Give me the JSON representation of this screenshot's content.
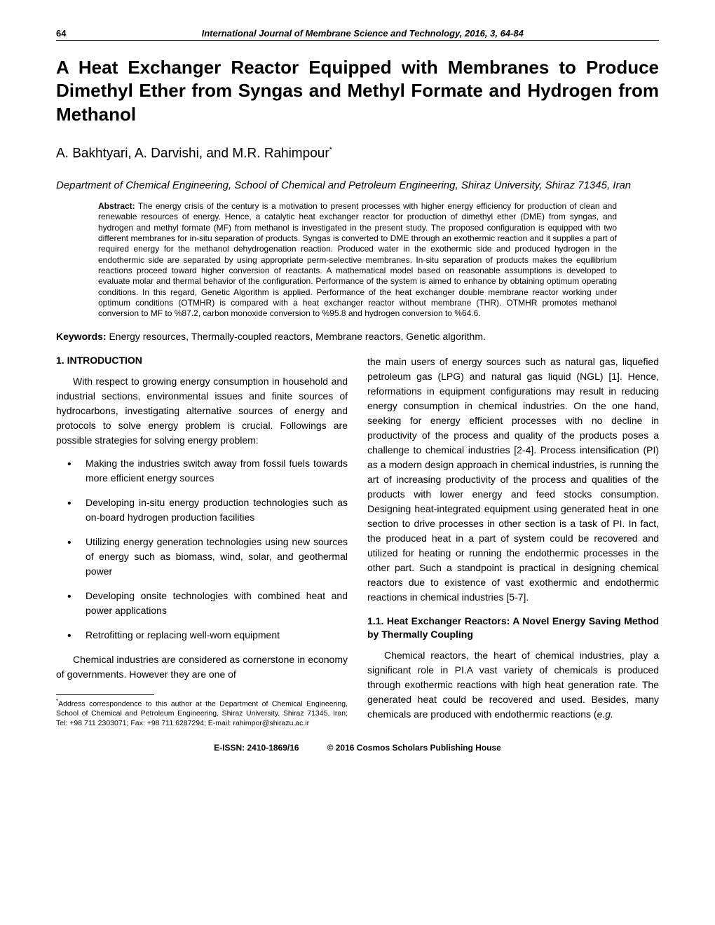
{
  "page": {
    "number": "64",
    "journal_header": "International Journal of Membrane Science and Technology, 2016, 3, 64-84",
    "background_color": "#ffffff",
    "text_color": "#000000"
  },
  "title": "A Heat Exchanger Reactor Equipped with Membranes to Produce Dimethyl Ether from Syngas and Methyl Formate and Hydrogen from Methanol",
  "authors": "A. Bakhtyari, A. Darvishi, and M.R. Rahimpour",
  "authors_sup": "*",
  "affiliation": "Department of Chemical Engineering, School of Chemical and Petroleum Engineering, Shiraz University, Shiraz 71345, Iran",
  "abstract": {
    "label": "Abstract:",
    "text": " The energy crisis of the century is a motivation to present processes with higher energy efficiency for production of clean and renewable resources of energy. Hence, a catalytic heat exchanger reactor for production of dimethyl ether (DME) from syngas, and hydrogen and methyl formate (MF) from methanol is investigated in the present study. The proposed configuration is equipped with two different membranes for in-situ separation of products. Syngas is converted to DME through an exothermic reaction and it supplies a part of required energy for the methanol dehydrogenation reaction. Produced water in the exothermic side and produced hydrogen in the endothermic side are separated by using appropriate perm-selective membranes. In-situ separation of products makes the equilibrium reactions proceed toward higher conversion of reactants. A mathematical model based on reasonable assumptions is developed to evaluate molar and thermal behavior of the configuration. Performance of the system is aimed to enhance by obtaining optimum operating conditions. In this regard, Genetic Algorithm is applied. Performance of the heat exchanger double membrane reactor working under optimum conditions (OTMHR) is compared with a heat exchanger reactor without membrane (THR). OTMHR promotes methanol conversion to MF to %87.2, carbon monoxide conversion to %95.8 and hydrogen conversion to %64.6."
  },
  "keywords": {
    "label": "Keywords:",
    "text": " Energy resources, Thermally-coupled reactors, Membrane reactors, Genetic algorithm."
  },
  "left_column": {
    "section_head": "1. INTRODUCTION",
    "para1": "With respect to growing energy consumption in household and industrial sections, environmental issues and finite sources of hydrocarbons, investigating alternative sources of energy and protocols to solve energy problem is crucial. Followings are possible strategies for solving energy problem:",
    "bullets": [
      "Making the industries switch away from fossil fuels towards more efficient energy sources",
      "Developing in-situ energy production technologies such as on-board hydrogen production facilities",
      "Utilizing energy generation technologies using new sources of energy such as biomass, wind, solar, and geothermal power",
      "Developing onsite technologies with combined heat and power applications",
      "Retrofitting or replacing well-worn equipment"
    ],
    "para2": "Chemical industries are considered as cornerstone in economy of governments. However they are one of",
    "footnote_sup": "*",
    "footnote": "Address correspondence to this author at the Department of Chemical Engineering, School of Chemical and Petroleum Engineering, Shiraz University, Shiraz 71345, Iran; Tel: +98 711 2303071; Fax: +98 711 6287294; E-mail: rahimpor@shirazu.ac.ir"
  },
  "right_column": {
    "para1": "the main users of energy sources such as natural gas, liquefied petroleum gas (LPG) and natural gas liquid (NGL) [1]. Hence, reformations in equipment configurations may result in reducing energy consumption in chemical industries. On the one hand, seeking for energy efficient processes with no decline in productivity of the process and quality of the products poses a challenge to chemical industries [2-4]. Process intensification (PI) as a modern design approach in chemical industries, is running the art of increasing productivity of the process and qualities of the products with lower energy and feed stocks consumption. Designing heat-integrated equipment using generated heat in one section to drive processes in other section is a task of PI. In fact, the produced heat in a part of system could be recovered and utilized for heating or running the endothermic processes in the other part. Such a standpoint is practical in designing chemical reactors due to existence of vast exothermic and endothermic reactions in chemical industries [5-7].",
    "subsection_head": "1.1. Heat Exchanger Reactors: A Novel Energy Saving Method by Thermally Coupling",
    "para2_a": "Chemical reactors, the heart of chemical industries, play a significant role in PI.A vast variety of chemicals is produced through exothermic reactions with high heat generation rate. The generated heat could be recovered and used. Besides, many chemicals are produced with endothermic reactions (",
    "para2_eg": "e.g.",
    "para2_b": ""
  },
  "footer": {
    "eissn": "E-ISSN: 2410-1869/16",
    "copyright": "© 2016 Cosmos Scholars Publishing House"
  },
  "typography": {
    "base_font": "Arial",
    "title_size_pt": 20,
    "body_size_pt": 11,
    "abstract_size_pt": 9,
    "footnote_size_pt": 8
  }
}
